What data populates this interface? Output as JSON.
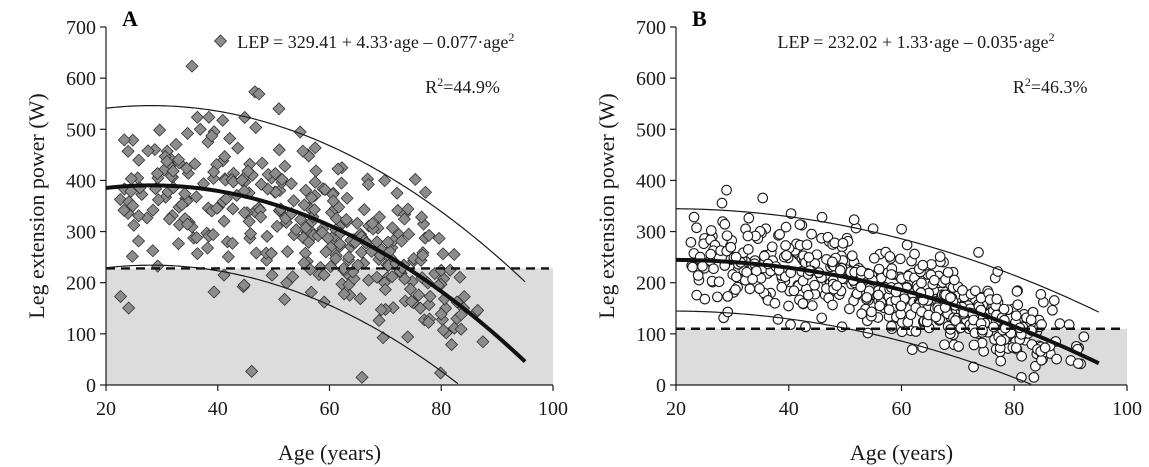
{
  "chart_data": [
    {
      "type": "scatter",
      "panel_label": "A",
      "xlabel": "Age (years)",
      "ylabel": "Leg extension power (W)",
      "xlim": [
        20,
        100
      ],
      "ylim": [
        0,
        700
      ],
      "xticks": [
        20,
        40,
        60,
        80,
        100
      ],
      "yticks": [
        0,
        100,
        200,
        300,
        400,
        500,
        600,
        700
      ],
      "equation": {
        "prefix": "LEP = 329.41 + 4.33·age – 0.077·age",
        "sup": "2"
      },
      "r2": {
        "prefix": "R",
        "sup": "2",
        "suffix": "=44.9%"
      },
      "legend_placement": "top",
      "marker": "diamond",
      "marker_fill": "#8c8c8c",
      "threshold_y": 228,
      "shaded_below_threshold": true,
      "fit": {
        "a": 329.41,
        "b": 4.33,
        "c": -0.077,
        "x_range": [
          20,
          95
        ]
      },
      "bands_offset": 156,
      "points_summary": [
        {
          "age_center": 25,
          "n": 22,
          "lep_mean": 380,
          "lep_sd": 75
        },
        {
          "age_center": 30,
          "n": 24,
          "lep_mean": 390,
          "lep_sd": 75
        },
        {
          "age_center": 35,
          "n": 26,
          "lep_mean": 385,
          "lep_sd": 80
        },
        {
          "age_center": 40,
          "n": 28,
          "lep_mean": 380,
          "lep_sd": 85
        },
        {
          "age_center": 45,
          "n": 30,
          "lep_mean": 370,
          "lep_sd": 85
        },
        {
          "age_center": 50,
          "n": 30,
          "lep_mean": 355,
          "lep_sd": 80
        },
        {
          "age_center": 55,
          "n": 32,
          "lep_mean": 335,
          "lep_sd": 80
        },
        {
          "age_center": 60,
          "n": 34,
          "lep_mean": 315,
          "lep_sd": 75
        },
        {
          "age_center": 65,
          "n": 34,
          "lep_mean": 290,
          "lep_sd": 75
        },
        {
          "age_center": 70,
          "n": 34,
          "lep_mean": 255,
          "lep_sd": 70
        },
        {
          "age_center": 75,
          "n": 30,
          "lep_mean": 220,
          "lep_sd": 65
        },
        {
          "age_center": 80,
          "n": 24,
          "lep_mean": 185,
          "lep_sd": 60
        },
        {
          "age_center": 85,
          "n": 10,
          "lep_mean": 140,
          "lep_sd": 45
        }
      ]
    },
    {
      "type": "scatter",
      "panel_label": "B",
      "xlabel": "Age (years)",
      "ylabel": "Leg extension power (W)",
      "xlim": [
        20,
        100
      ],
      "ylim": [
        0,
        700
      ],
      "xticks": [
        20,
        40,
        60,
        80,
        100
      ],
      "yticks": [
        0,
        100,
        200,
        300,
        400,
        500,
        600,
        700
      ],
      "equation": {
        "prefix": "LEP = 232.02 + 1.33·age – 0.035·age",
        "sup": "2"
      },
      "r2": {
        "prefix": "R",
        "sup": "2",
        "suffix": "=46.3%"
      },
      "legend_placement": "top",
      "marker": "circle",
      "marker_fill": "#ffffff",
      "threshold_y": 110,
      "shaded_below_threshold": true,
      "fit": {
        "a": 232.02,
        "b": 1.33,
        "c": -0.035,
        "x_range": [
          20,
          95
        ]
      },
      "bands_offset": 100,
      "points_summary": [
        {
          "age_center": 25,
          "n": 30,
          "lep_mean": 240,
          "lep_sd": 50
        },
        {
          "age_center": 30,
          "n": 34,
          "lep_mean": 245,
          "lep_sd": 50
        },
        {
          "age_center": 35,
          "n": 36,
          "lep_mean": 240,
          "lep_sd": 50
        },
        {
          "age_center": 40,
          "n": 40,
          "lep_mean": 235,
          "lep_sd": 50
        },
        {
          "age_center": 45,
          "n": 40,
          "lep_mean": 225,
          "lep_sd": 50
        },
        {
          "age_center": 50,
          "n": 44,
          "lep_mean": 215,
          "lep_sd": 48
        },
        {
          "age_center": 55,
          "n": 46,
          "lep_mean": 200,
          "lep_sd": 45
        },
        {
          "age_center": 60,
          "n": 50,
          "lep_mean": 185,
          "lep_sd": 45
        },
        {
          "age_center": 65,
          "n": 52,
          "lep_mean": 170,
          "lep_sd": 42
        },
        {
          "age_center": 70,
          "n": 54,
          "lep_mean": 150,
          "lep_sd": 40
        },
        {
          "age_center": 75,
          "n": 50,
          "lep_mean": 130,
          "lep_sd": 38
        },
        {
          "age_center": 80,
          "n": 40,
          "lep_mean": 110,
          "lep_sd": 35
        },
        {
          "age_center": 85,
          "n": 30,
          "lep_mean": 95,
          "lep_sd": 30
        },
        {
          "age_center": 90,
          "n": 10,
          "lep_mean": 80,
          "lep_sd": 25
        }
      ]
    }
  ]
}
